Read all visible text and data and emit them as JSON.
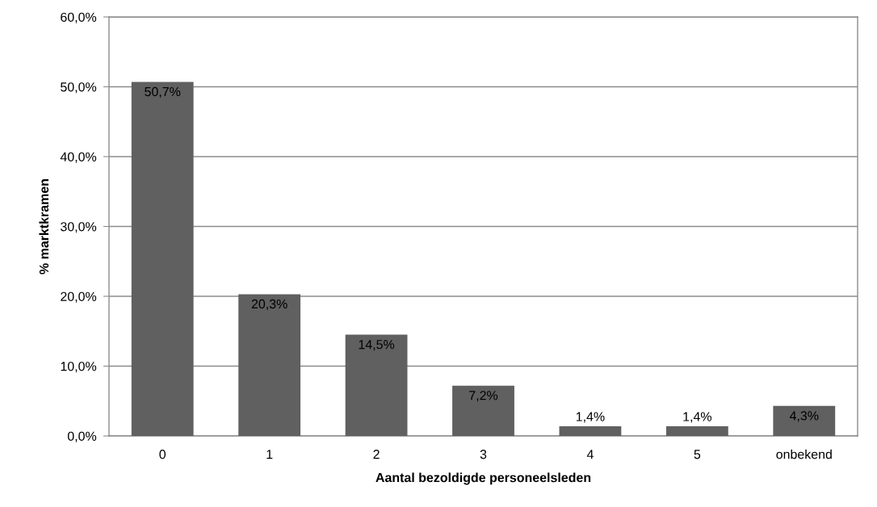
{
  "chart_data": {
    "type": "bar",
    "categories": [
      "0",
      "1",
      "2",
      "3",
      "4",
      "5",
      "onbekend"
    ],
    "values": [
      50.7,
      20.3,
      14.5,
      7.2,
      1.4,
      1.4,
      4.3
    ],
    "value_labels": [
      "50,7%",
      "20,3%",
      "14,5%",
      "7,2%",
      "1,4%",
      "1,4%",
      "4,3%"
    ],
    "color": "#606060",
    "xlabel": "Aantal bezoldigde personeelsleden",
    "ylabel": "% marktkramen",
    "ylim": [
      0,
      60
    ],
    "yticks": [
      {
        "value": 0,
        "label": "0,0%"
      },
      {
        "value": 10,
        "label": "10,0%"
      },
      {
        "value": 20,
        "label": "20,0%"
      },
      {
        "value": 30,
        "label": "30,0%"
      },
      {
        "value": 40,
        "label": "40,0%"
      },
      {
        "value": 50,
        "label": "50,0%"
      },
      {
        "value": 60,
        "label": "60,0%"
      }
    ],
    "grid": "y",
    "legend": false
  }
}
